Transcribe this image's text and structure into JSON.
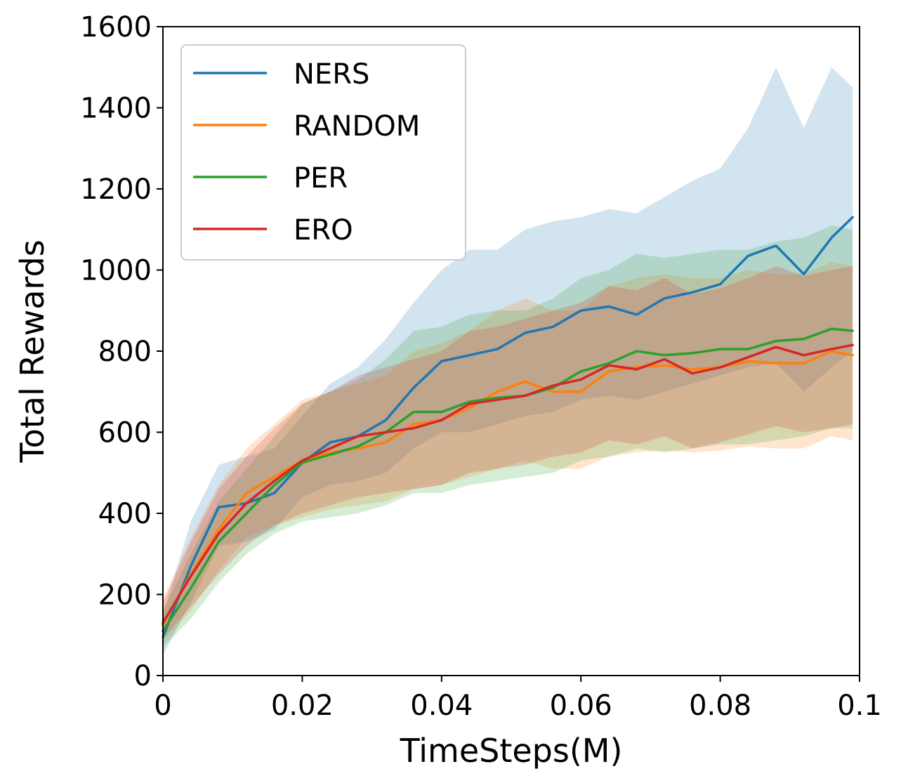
{
  "chart_data": {
    "type": "line",
    "title": "",
    "xlabel": "TimeSteps(M)",
    "ylabel": "Total Rewards",
    "xlim": [
      0,
      0.1
    ],
    "ylim": [
      0,
      1600
    ],
    "x_ticks": [
      "0",
      "0.02",
      "0.04",
      "0.06",
      "0.08",
      "0.1"
    ],
    "y_ticks": [
      "0",
      "200",
      "400",
      "600",
      "800",
      "1000",
      "1200",
      "1400",
      "1600"
    ],
    "x_tick_values": [
      0,
      0.02,
      0.04,
      0.06,
      0.08,
      0.1
    ],
    "y_tick_values": [
      0,
      200,
      400,
      600,
      800,
      1000,
      1200,
      1400,
      1600
    ],
    "grid": false,
    "legend_position": "top-left",
    "x": [
      0,
      0.004,
      0.008,
      0.012,
      0.016,
      0.02,
      0.024,
      0.028,
      0.032,
      0.036,
      0.04,
      0.044,
      0.048,
      0.052,
      0.056,
      0.06,
      0.064,
      0.068,
      0.072,
      0.076,
      0.08,
      0.084,
      0.088,
      0.092,
      0.096,
      0.099
    ],
    "series": [
      {
        "name": "NERS",
        "color": "#1f77b4",
        "values": [
          95,
          270,
          415,
          425,
          450,
          525,
          575,
          590,
          630,
          710,
          775,
          790,
          805,
          845,
          860,
          900,
          910,
          890,
          930,
          945,
          965,
          1035,
          1060,
          990,
          1080,
          1130
        ],
        "band_lower": [
          50,
          180,
          320,
          330,
          360,
          440,
          470,
          480,
          500,
          560,
          600,
          600,
          620,
          640,
          650,
          680,
          690,
          680,
          700,
          720,
          740,
          760,
          770,
          700,
          760,
          800
        ],
        "band_upper": [
          150,
          380,
          520,
          540,
          560,
          640,
          720,
          760,
          830,
          920,
          1000,
          1050,
          1050,
          1100,
          1120,
          1130,
          1150,
          1140,
          1180,
          1220,
          1250,
          1350,
          1500,
          1350,
          1500,
          1450
        ]
      },
      {
        "name": "RANDOM",
        "color": "#ff7f0e",
        "values": [
          125,
          250,
          360,
          450,
          490,
          530,
          550,
          560,
          575,
          620,
          630,
          660,
          700,
          725,
          700,
          700,
          750,
          760,
          765,
          755,
          760,
          775,
          770,
          770,
          800,
          790
        ],
        "band_lower": [
          80,
          160,
          260,
          340,
          370,
          390,
          410,
          420,
          430,
          460,
          470,
          490,
          510,
          530,
          510,
          510,
          540,
          550,
          555,
          550,
          555,
          565,
          560,
          560,
          590,
          580
        ],
        "band_upper": [
          190,
          340,
          470,
          560,
          620,
          680,
          700,
          720,
          740,
          800,
          820,
          850,
          900,
          930,
          900,
          900,
          960,
          980,
          990,
          980,
          980,
          1000,
          990,
          990,
          1020,
          1010
        ]
      },
      {
        "name": "PER",
        "color": "#2ca02c",
        "values": [
          110,
          215,
          330,
          400,
          470,
          525,
          545,
          565,
          600,
          650,
          650,
          675,
          685,
          690,
          710,
          750,
          770,
          800,
          790,
          795,
          805,
          805,
          825,
          830,
          855,
          850
        ],
        "band_lower": [
          70,
          140,
          230,
          300,
          350,
          380,
          390,
          400,
          420,
          450,
          450,
          470,
          480,
          490,
          500,
          530,
          540,
          560,
          550,
          560,
          570,
          570,
          580,
          590,
          610,
          610
        ],
        "band_upper": [
          160,
          300,
          430,
          510,
          590,
          670,
          700,
          730,
          780,
          850,
          860,
          890,
          900,
          900,
          930,
          980,
          1000,
          1040,
          1030,
          1040,
          1050,
          1050,
          1070,
          1080,
          1110,
          1100
        ]
      },
      {
        "name": "ERO",
        "color": "#d62728",
        "values": [
          130,
          245,
          350,
          425,
          480,
          530,
          560,
          590,
          600,
          610,
          630,
          670,
          680,
          690,
          715,
          730,
          765,
          755,
          780,
          745,
          760,
          785,
          810,
          790,
          805,
          815
        ],
        "band_lower": [
          90,
          170,
          250,
          320,
          370,
          400,
          420,
          440,
          450,
          460,
          470,
          500,
          510,
          520,
          540,
          550,
          580,
          570,
          590,
          560,
          575,
          595,
          615,
          600,
          610,
          620
        ],
        "band_upper": [
          180,
          330,
          460,
          540,
          610,
          670,
          700,
          740,
          760,
          780,
          800,
          850,
          860,
          880,
          900,
          920,
          960,
          950,
          980,
          940,
          955,
          980,
          1010,
          985,
          1000,
          1010
        ]
      }
    ]
  }
}
